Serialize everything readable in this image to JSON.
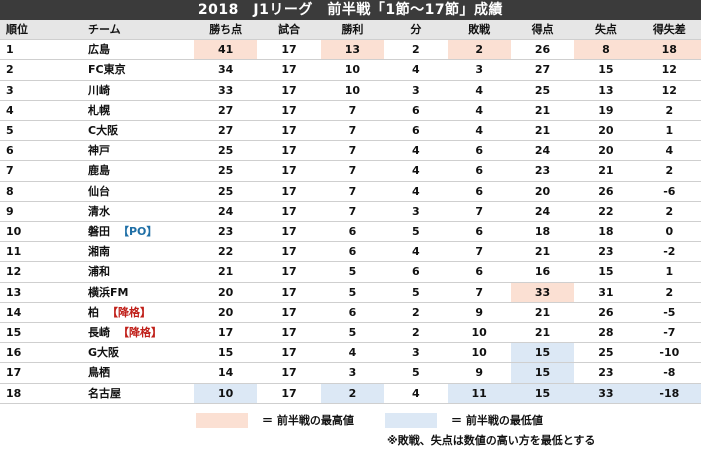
{
  "title": "2018　J1リーグ　前半戦「1節～17節」成績",
  "columns": [
    "順位",
    "チーム",
    "勝ち点",
    "試合",
    "勝利",
    "分",
    "敗戦",
    "得点",
    "失点",
    "得失差"
  ],
  "rows": [
    {
      "rank": "1",
      "team": "広島",
      "note": "",
      "pts": "41",
      "gp": "17",
      "w": "13",
      "d": "2",
      "l": "2",
      "gf": "26",
      "ga": "8",
      "gd": "18"
    },
    {
      "rank": "2",
      "team": "FC東京",
      "note": "",
      "pts": "34",
      "gp": "17",
      "w": "10",
      "d": "4",
      "l": "3",
      "gf": "27",
      "ga": "15",
      "gd": "12"
    },
    {
      "rank": "3",
      "team": "川崎",
      "note": "",
      "pts": "33",
      "gp": "17",
      "w": "10",
      "d": "3",
      "l": "4",
      "gf": "25",
      "ga": "13",
      "gd": "12"
    },
    {
      "rank": "4",
      "team": "札幌",
      "note": "",
      "pts": "27",
      "gp": "17",
      "w": "7",
      "d": "6",
      "l": "4",
      "gf": "21",
      "ga": "19",
      "gd": "2"
    },
    {
      "rank": "5",
      "team": "C大阪",
      "note": "",
      "pts": "27",
      "gp": "17",
      "w": "7",
      "d": "6",
      "l": "4",
      "gf": "21",
      "ga": "20",
      "gd": "1"
    },
    {
      "rank": "6",
      "team": "神戸",
      "note": "",
      "pts": "25",
      "gp": "17",
      "w": "7",
      "d": "4",
      "l": "6",
      "gf": "24",
      "ga": "20",
      "gd": "4"
    },
    {
      "rank": "7",
      "team": "鹿島",
      "note": "",
      "pts": "25",
      "gp": "17",
      "w": "7",
      "d": "4",
      "l": "6",
      "gf": "23",
      "ga": "21",
      "gd": "2"
    },
    {
      "rank": "8",
      "team": "仙台",
      "note": "",
      "pts": "25",
      "gp": "17",
      "w": "7",
      "d": "4",
      "l": "6",
      "gf": "20",
      "ga": "26",
      "gd": "-6"
    },
    {
      "rank": "9",
      "team": "清水",
      "note": "",
      "pts": "24",
      "gp": "17",
      "w": "7",
      "d": "3",
      "l": "7",
      "gf": "24",
      "ga": "22",
      "gd": "2"
    },
    {
      "rank": "10",
      "team": "磐田",
      "note": "【PO】",
      "note_type": "po",
      "pts": "23",
      "gp": "17",
      "w": "6",
      "d": "5",
      "l": "6",
      "gf": "18",
      "ga": "18",
      "gd": "0"
    },
    {
      "rank": "11",
      "team": "湘南",
      "note": "",
      "pts": "22",
      "gp": "17",
      "w": "6",
      "d": "4",
      "l": "7",
      "gf": "21",
      "ga": "23",
      "gd": "-2"
    },
    {
      "rank": "12",
      "team": "浦和",
      "note": "",
      "pts": "21",
      "gp": "17",
      "w": "5",
      "d": "6",
      "l": "6",
      "gf": "16",
      "ga": "15",
      "gd": "1"
    },
    {
      "rank": "13",
      "team": "横浜FM",
      "note": "",
      "pts": "20",
      "gp": "17",
      "w": "5",
      "d": "5",
      "l": "7",
      "gf": "33",
      "ga": "31",
      "gd": "2"
    },
    {
      "rank": "14",
      "team": "柏",
      "note": "【降格】",
      "note_type": "rel",
      "pts": "20",
      "gp": "17",
      "w": "6",
      "d": "2",
      "l": "9",
      "gf": "21",
      "ga": "26",
      "gd": "-5"
    },
    {
      "rank": "15",
      "team": "長崎",
      "note": "【降格】",
      "note_type": "rel",
      "pts": "17",
      "gp": "17",
      "w": "5",
      "d": "2",
      "l": "10",
      "gf": "21",
      "ga": "28",
      "gd": "-7"
    },
    {
      "rank": "16",
      "team": "G大阪",
      "note": "",
      "pts": "15",
      "gp": "17",
      "w": "4",
      "d": "3",
      "l": "10",
      "gf": "15",
      "ga": "25",
      "gd": "-10"
    },
    {
      "rank": "17",
      "team": "鳥栖",
      "note": "",
      "pts": "14",
      "gp": "17",
      "w": "3",
      "d": "5",
      "l": "9",
      "gf": "15",
      "ga": "23",
      "gd": "-8"
    },
    {
      "rank": "18",
      "team": "名古屋",
      "note": "",
      "pts": "10",
      "gp": "17",
      "w": "2",
      "d": "4",
      "l": "11",
      "gf": "15",
      "ga": "33",
      "gd": "-18"
    }
  ],
  "highlights": {
    "high": [
      [
        0,
        "pts"
      ],
      [
        0,
        "w"
      ],
      [
        0,
        "l"
      ],
      [
        0,
        "ga"
      ],
      [
        0,
        "gd"
      ],
      [
        12,
        "gf"
      ]
    ],
    "low": [
      [
        15,
        "gf"
      ],
      [
        16,
        "gf"
      ],
      [
        17,
        "pts"
      ],
      [
        17,
        "w"
      ],
      [
        17,
        "l"
      ],
      [
        17,
        "gf"
      ],
      [
        17,
        "ga"
      ],
      [
        17,
        "gd"
      ]
    ]
  },
  "colors": {
    "high": "#fbe0d3",
    "low": "#dce8f5",
    "header_bar": "#3b3b3b",
    "po": "#1f6fa6",
    "relegation": "#c0201a"
  },
  "legend": {
    "high_label": "＝ 前半戦の最高値",
    "low_label": "＝ 前半戦の最低値",
    "note": "※敗戦、失点は数値の高い方を最低とする"
  }
}
